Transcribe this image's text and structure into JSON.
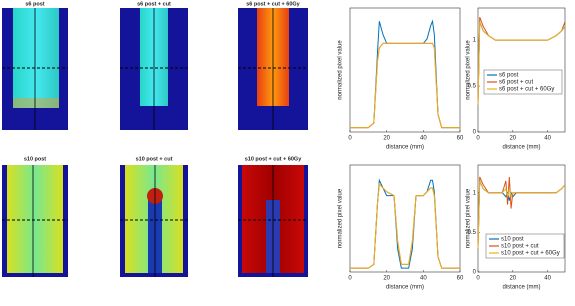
{
  "image_panels": {
    "titles": [
      "s6 post",
      "s6 post + cut",
      "s6 post + cut + 60Gy",
      "s10 post",
      "s10 post + cut",
      "s10 post + cut + 60Gy"
    ]
  },
  "chart_data": [
    {
      "type": "line",
      "xlabel": "distance (mm)",
      "ylabel": "normalized pixel value",
      "x": [
        0,
        5,
        10,
        13,
        15,
        16,
        18,
        20,
        25,
        30,
        35,
        40,
        42,
        44,
        45,
        46,
        48,
        50,
        55,
        60
      ],
      "xlim": [
        0,
        60
      ],
      "xticks": [
        0,
        20,
        40,
        60
      ],
      "ylim": [
        0,
        1.4
      ],
      "series": [
        {
          "name": "s6 post",
          "color": "#0072bd",
          "values": [
            0.05,
            0.05,
            0.05,
            0.1,
            0.9,
            1.25,
            1.1,
            1.0,
            1.0,
            1.0,
            1.0,
            1.0,
            1.05,
            1.2,
            1.25,
            1.1,
            0.2,
            0.05,
            0.05,
            0.05
          ]
        },
        {
          "name": "s6 post + cut",
          "color": "#d95319",
          "values": [
            0.05,
            0.05,
            0.05,
            0.1,
            0.8,
            0.95,
            1.0,
            1.0,
            1.0,
            1.0,
            1.0,
            1.0,
            1.0,
            1.0,
            1.0,
            0.95,
            0.2,
            0.05,
            0.05,
            0.05
          ]
        },
        {
          "name": "s6 post + cut + 60Gy",
          "color": "#edb120",
          "values": [
            0.05,
            0.05,
            0.05,
            0.1,
            0.8,
            0.95,
            1.0,
            1.0,
            1.0,
            1.0,
            1.0,
            1.0,
            1.0,
            1.0,
            1.0,
            0.95,
            0.2,
            0.05,
            0.05,
            0.05
          ]
        }
      ]
    },
    {
      "type": "line",
      "xlabel": "distance (mm)",
      "ylabel": "normalized pixel value",
      "x": [
        0,
        1,
        3,
        6,
        10,
        20,
        30,
        40,
        45,
        48,
        50
      ],
      "xlim": [
        0,
        50
      ],
      "xticks": [
        0,
        20,
        40
      ],
      "ylim": [
        0,
        1.35
      ],
      "yticks": [
        0,
        0.5,
        1
      ],
      "series": [
        {
          "name": "s6 post",
          "color": "#0072bd",
          "values": [
            0.3,
            1.2,
            1.1,
            1.05,
            1.0,
            1.0,
            1.0,
            1.0,
            1.05,
            1.1,
            1.15
          ]
        },
        {
          "name": "s6 post + cut",
          "color": "#d95319",
          "values": [
            0.3,
            1.25,
            1.15,
            1.05,
            1.0,
            1.0,
            1.0,
            1.0,
            1.05,
            1.1,
            1.2
          ]
        },
        {
          "name": "s6 post + cut + 60Gy",
          "color": "#edb120",
          "values": [
            0.3,
            1.2,
            1.1,
            1.05,
            1.0,
            1.0,
            1.0,
            1.0,
            1.05,
            1.1,
            1.15
          ]
        }
      ]
    },
    {
      "type": "line",
      "xlabel": "distance (mm)",
      "ylabel": "normalized pixel value",
      "x": [
        0,
        5,
        10,
        13,
        15,
        16,
        18,
        20,
        24,
        26,
        28,
        32,
        34,
        36,
        40,
        42,
        44,
        45,
        46,
        48,
        50,
        55,
        60
      ],
      "xlim": [
        0,
        60
      ],
      "xticks": [
        0,
        20,
        40,
        60
      ],
      "ylim": [
        0,
        1.4
      ],
      "series": [
        {
          "name": "s10 post",
          "color": "#0072bd",
          "values": [
            0.05,
            0.05,
            0.05,
            0.1,
            0.9,
            1.2,
            1.1,
            1.0,
            1.0,
            0.3,
            0.05,
            0.05,
            0.3,
            1.0,
            1.0,
            1.05,
            1.2,
            1.2,
            1.05,
            0.2,
            0.05,
            0.05,
            0.05
          ]
        },
        {
          "name": "s10 post + cut",
          "color": "#d95319",
          "values": [
            0.05,
            0.05,
            0.05,
            0.1,
            0.9,
            1.15,
            1.1,
            1.05,
            1.0,
            0.4,
            0.1,
            0.1,
            0.4,
            1.0,
            1.0,
            1.05,
            1.1,
            1.1,
            1.0,
            0.2,
            0.05,
            0.05,
            0.05
          ]
        },
        {
          "name": "s10 post + cut + 60Gy",
          "color": "#edb120",
          "values": [
            0.05,
            0.05,
            0.05,
            0.1,
            0.9,
            1.15,
            1.1,
            1.05,
            1.0,
            0.4,
            0.1,
            0.1,
            0.4,
            1.0,
            1.0,
            1.05,
            1.1,
            1.1,
            1.0,
            0.2,
            0.05,
            0.05,
            0.05
          ]
        }
      ]
    },
    {
      "type": "line",
      "xlabel": "distance (mm)",
      "ylabel": "normalized pixel value",
      "x": [
        0,
        1,
        3,
        6,
        10,
        14,
        16,
        17,
        18,
        19,
        20,
        22,
        30,
        40,
        45,
        48,
        50
      ],
      "xlim": [
        0,
        50
      ],
      "xticks": [
        0,
        20,
        40
      ],
      "ylim": [
        0,
        1.35
      ],
      "yticks": [
        0,
        0.5,
        1
      ],
      "series": [
        {
          "name": "s10 post",
          "color": "#0072bd",
          "values": [
            0.3,
            1.15,
            1.05,
            1.0,
            1.0,
            1.0,
            0.95,
            1.0,
            0.9,
            1.0,
            0.95,
            1.0,
            1.0,
            1.0,
            1.0,
            1.05,
            1.1
          ]
        },
        {
          "name": "s10 post + cut",
          "color": "#d95319",
          "values": [
            0.3,
            1.2,
            1.1,
            1.0,
            1.0,
            1.0,
            1.15,
            0.85,
            1.2,
            0.8,
            1.0,
            1.0,
            1.0,
            1.0,
            1.0,
            1.05,
            1.1
          ]
        },
        {
          "name": "s10 post + cut + 60Gy",
          "color": "#edb120",
          "values": [
            0.3,
            1.15,
            1.05,
            1.0,
            1.0,
            1.0,
            1.05,
            0.95,
            1.05,
            0.95,
            1.0,
            1.0,
            1.0,
            1.0,
            1.0,
            1.05,
            1.1
          ]
        }
      ]
    }
  ]
}
